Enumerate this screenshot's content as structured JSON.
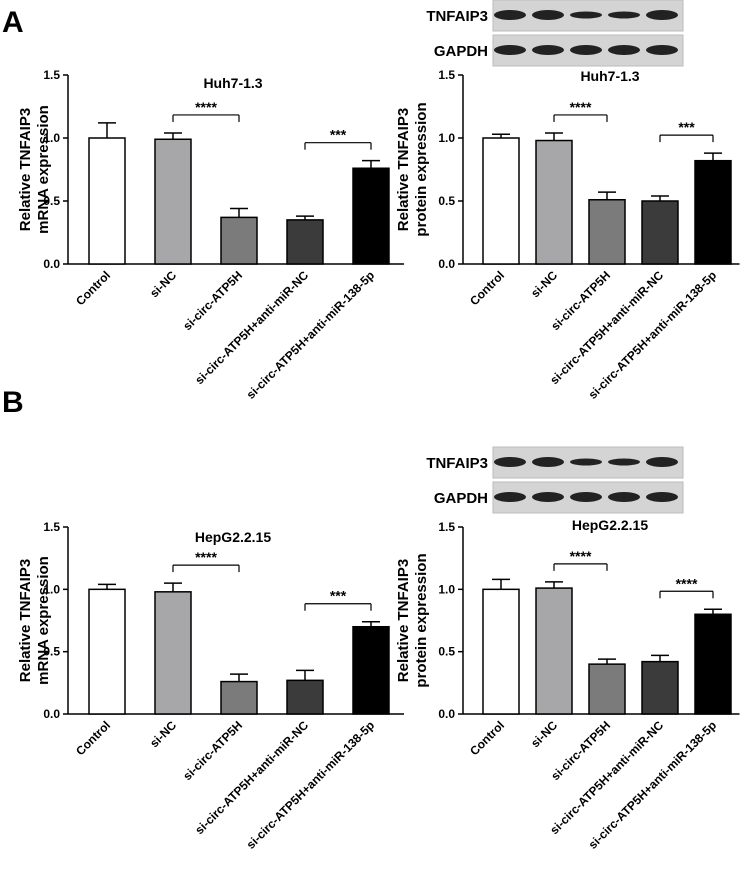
{
  "panel_labels": [
    "A",
    "B"
  ],
  "chart_data": [
    {
      "type": "bar",
      "title": "Huh7-1.3",
      "ylabel": [
        "Relative TNFAIP3",
        "mRNA expression"
      ],
      "categories": [
        "Control",
        "si-NC",
        "si-circ-ATP5H",
        "si-circ-ATP5H+anti-miR-NC",
        "si-circ-ATP5H+anti-miR-138-5p"
      ],
      "values": [
        1.0,
        0.99,
        0.37,
        0.35,
        0.76
      ],
      "errors": [
        0.12,
        0.05,
        0.07,
        0.03,
        0.06
      ],
      "colors": [
        "#ffffff",
        "#a7a7aa",
        "#7b7b7b",
        "#3b3b3b",
        "#000000"
      ],
      "ylim": [
        0,
        1.5
      ],
      "yticks": [
        {
          "value": 0,
          "label": "0.0"
        },
        0.5,
        {
          "value": 1,
          "label": "1.0"
        },
        1.5
      ],
      "annotations": [
        "****",
        "***"
      ]
    },
    {
      "type": "bar",
      "title": "Huh7-1.3",
      "ylabel": [
        "Relative TNFAIP3",
        "protein expression"
      ],
      "categories": [
        "Control",
        "si-NC",
        "si-circ-ATP5H",
        "si-circ-ATP5H+anti-miR-NC",
        "si-circ-ATP5H+anti-miR-138-5p"
      ],
      "values": [
        1.0,
        0.98,
        0.51,
        0.5,
        0.82
      ],
      "errors": [
        0.03,
        0.06,
        0.06,
        0.04,
        0.06
      ],
      "colors": [
        "#ffffff",
        "#a7a7aa",
        "#7b7b7b",
        "#3b3b3b",
        "#000000"
      ],
      "ylim": [
        0,
        1.5
      ],
      "yticks": [
        {
          "value": 0,
          "label": "0.0"
        },
        0.5,
        {
          "value": 1,
          "label": "1.0"
        },
        1.5
      ],
      "annotations": [
        "****",
        "***"
      ],
      "blot_labels": [
        "TNFAIP3",
        "GAPDH"
      ]
    },
    {
      "type": "bar",
      "title": "HepG2.2.15",
      "ylabel": [
        "Relative TNFAIP3",
        "mRNA expression"
      ],
      "categories": [
        "Control",
        "si-NC",
        "si-circ-ATP5H",
        "si-circ-ATP5H+anti-miR-NC",
        "si-circ-ATP5H+anti-miR-138-5p"
      ],
      "values": [
        1.0,
        0.98,
        0.26,
        0.27,
        0.7
      ],
      "errors": [
        0.04,
        0.07,
        0.06,
        0.08,
        0.04
      ],
      "colors": [
        "#ffffff",
        "#a7a7aa",
        "#7b7b7b",
        "#3b3b3b",
        "#000000"
      ],
      "ylim": [
        0,
        1.5
      ],
      "yticks": [
        {
          "value": 0,
          "label": "0.0"
        },
        0.5,
        {
          "value": 1,
          "label": "1.0"
        },
        1.5
      ],
      "annotations": [
        "****",
        "***"
      ]
    },
    {
      "type": "bar",
      "title": "HepG2.2.15",
      "ylabel": [
        "Relative TNFAIP3",
        "protein expression"
      ],
      "categories": [
        "Control",
        "si-NC",
        "si-circ-ATP5H",
        "si-circ-ATP5H+anti-miR-NC",
        "si-circ-ATP5H+anti-miR-138-5p"
      ],
      "values": [
        1.0,
        1.01,
        0.4,
        0.42,
        0.8
      ],
      "errors": [
        0.08,
        0.05,
        0.04,
        0.05,
        0.04
      ],
      "colors": [
        "#ffffff",
        "#a7a7aa",
        "#7b7b7b",
        "#3b3b3b",
        "#000000"
      ],
      "ylim": [
        0,
        1.5
      ],
      "yticks": [
        {
          "value": 0,
          "label": "0.0"
        },
        0.5,
        {
          "value": 1,
          "label": "1.0"
        },
        1.5
      ],
      "annotations": [
        "****",
        "****"
      ],
      "blot_labels": [
        "TNFAIP3",
        "GAPDH"
      ]
    }
  ]
}
